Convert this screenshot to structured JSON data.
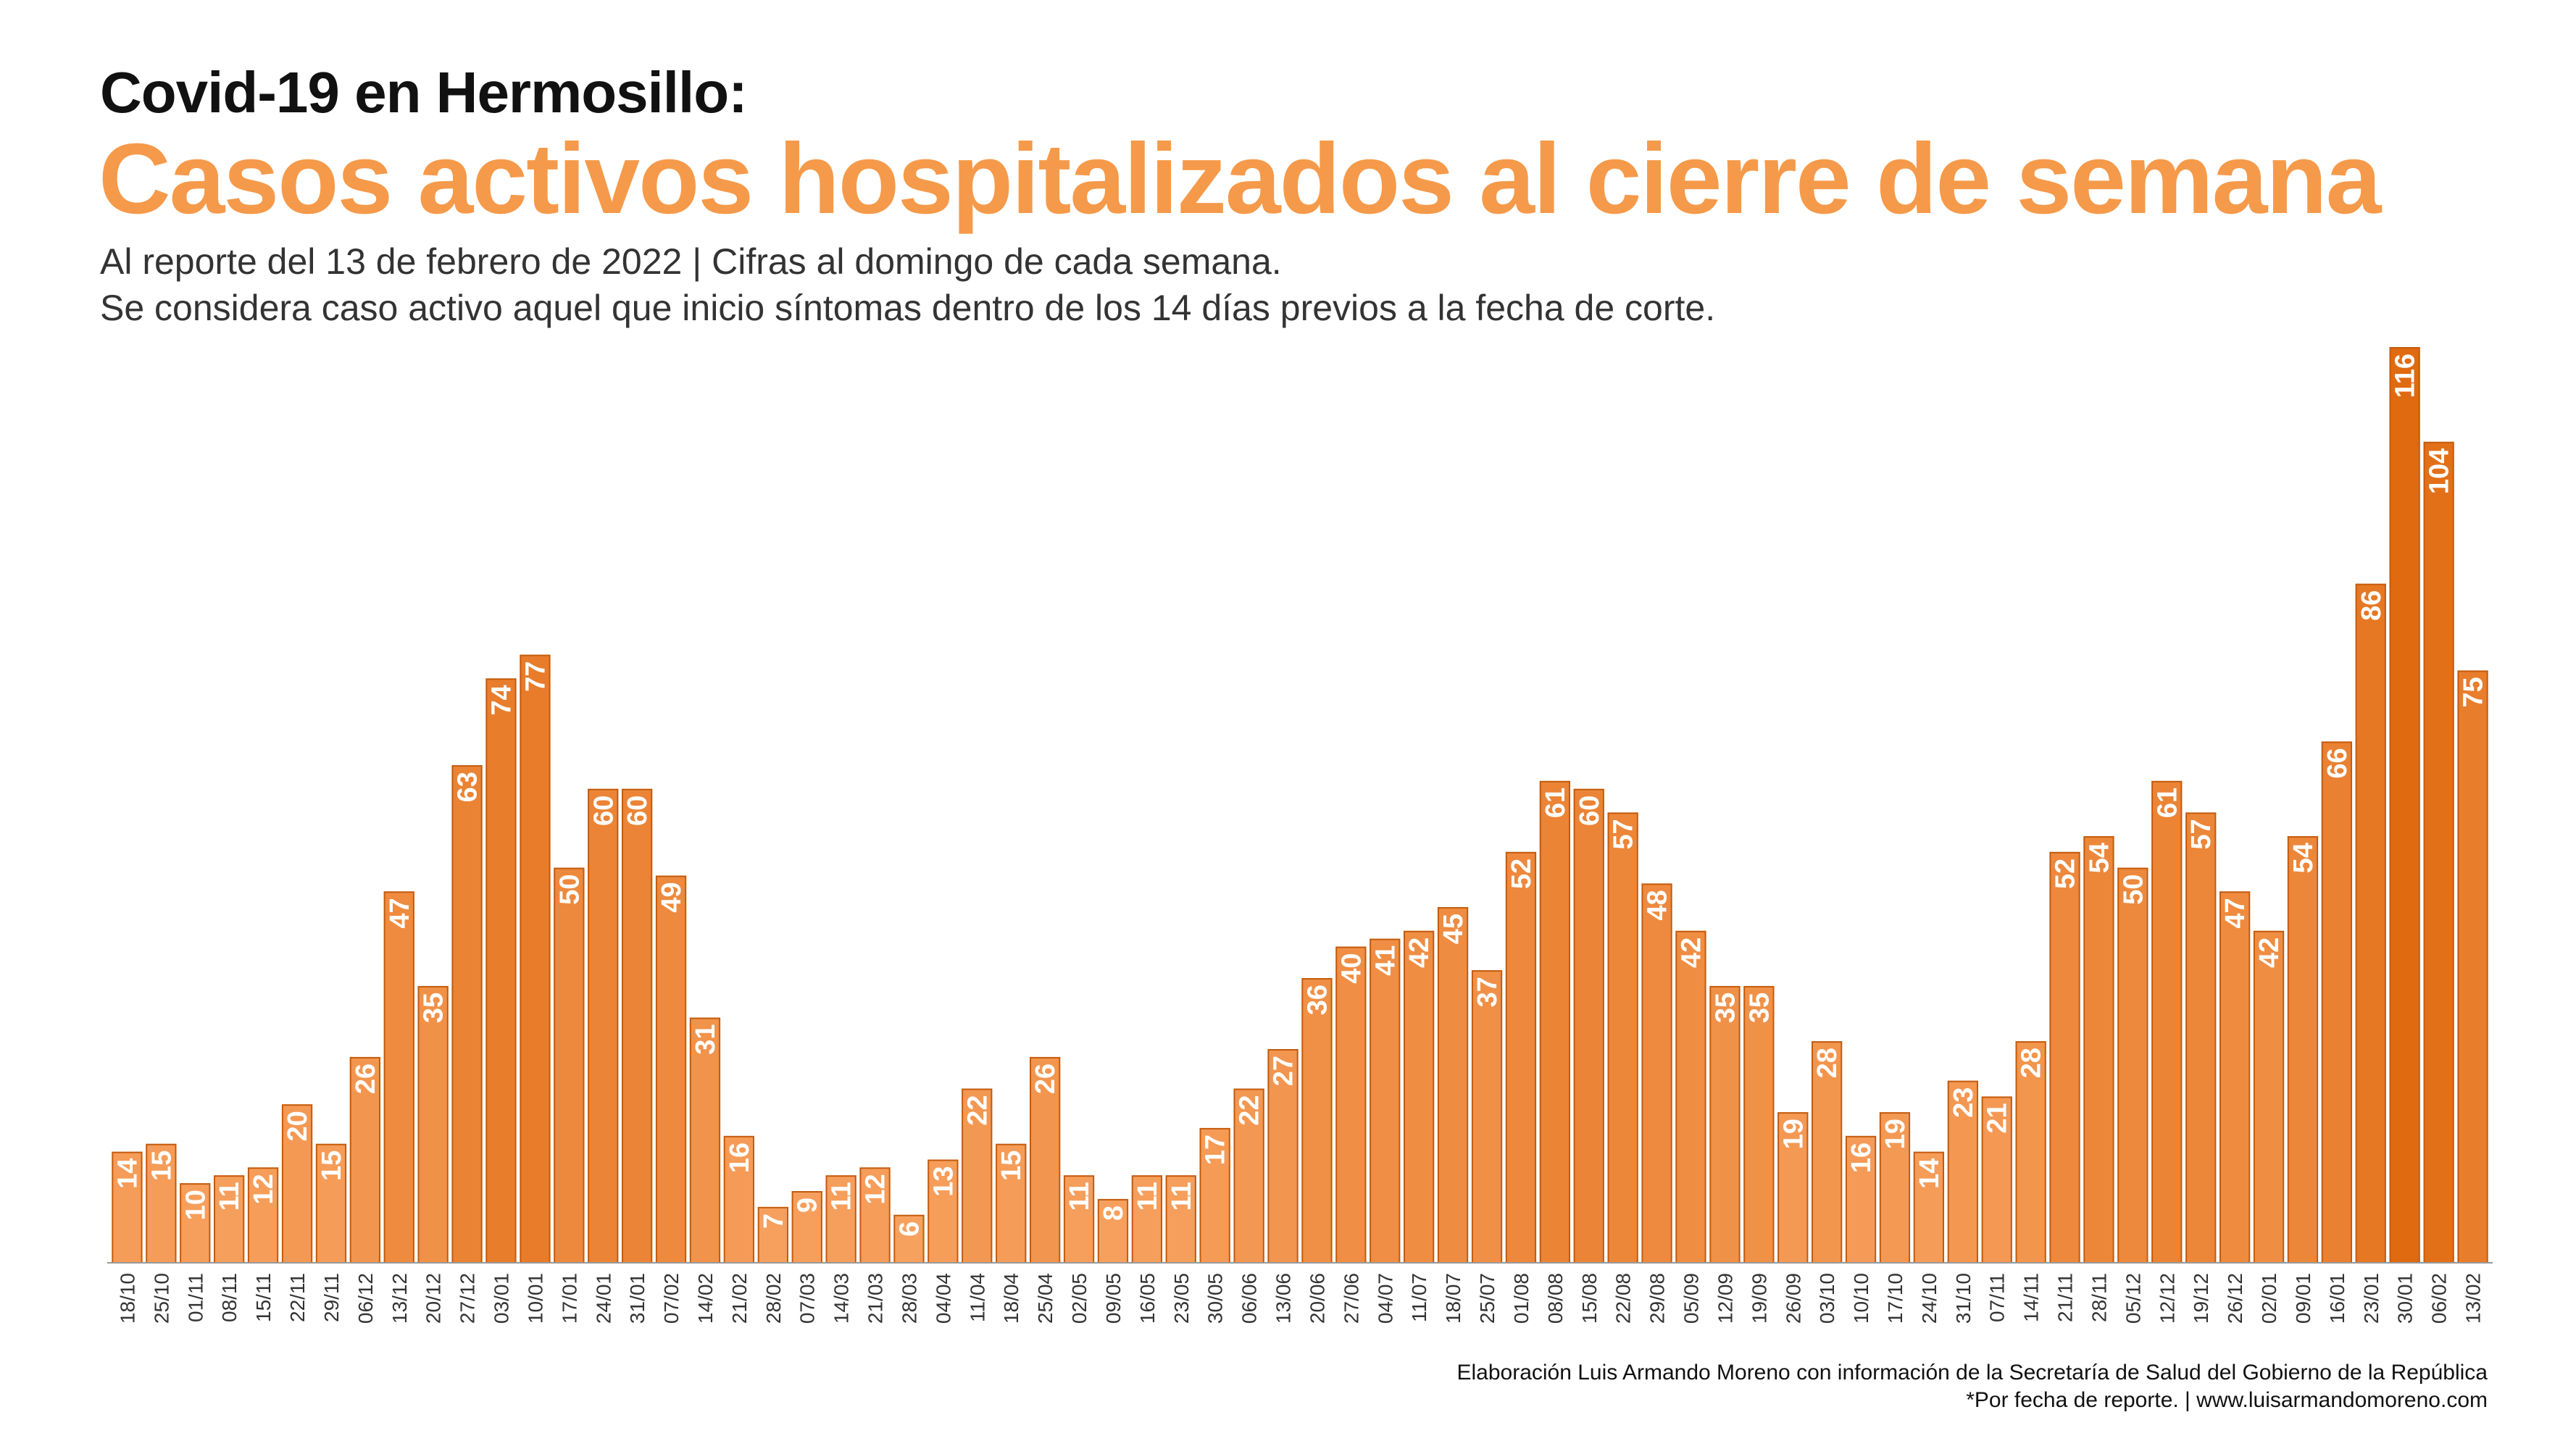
{
  "header": {
    "title": "Covid-19 en Hermosillo:",
    "headline": "Casos activos hospitalizados al cierre de semana",
    "subtitle_line1": "Al reporte del 13 de febrero de 2022  | Cifras al domingo de cada semana.",
    "subtitle_line2": "Se considera caso activo aquel que inicio síntomas dentro de los 14 días previos a la fecha de corte."
  },
  "footer": {
    "credit": "Elaboración Luis Armando Moreno con información de la Secretaría de Salud del Gobierno de la República",
    "note": "*Por fecha de reporte. | www.luisarmandomoreno.com"
  },
  "colors": {
    "bar_light": "#f9a565",
    "bar_dark": "#e06a10",
    "bar_stroke": "#c45a0c",
    "headline": "#f59a4a"
  },
  "chart_data": {
    "type": "bar",
    "grid": false,
    "legend": "none",
    "data_labels": true,
    "categories": [
      "18/10",
      "25/10",
      "01/11",
      "08/11",
      "15/11",
      "22/11",
      "29/11",
      "06/12",
      "13/12",
      "20/12",
      "27/12",
      "03/01",
      "10/01",
      "17/01",
      "24/01",
      "31/01",
      "07/02",
      "14/02",
      "21/02",
      "28/02",
      "07/03",
      "14/03",
      "21/03",
      "28/03",
      "04/04",
      "11/04",
      "18/04",
      "25/04",
      "02/05",
      "09/05",
      "16/05",
      "23/05",
      "30/05",
      "06/06",
      "13/06",
      "20/06",
      "27/06",
      "04/07",
      "11/07",
      "18/07",
      "25/07",
      "01/08",
      "08/08",
      "15/08",
      "22/08",
      "29/08",
      "05/09",
      "12/09",
      "19/09",
      "26/09",
      "03/10",
      "10/10",
      "17/10",
      "24/10",
      "31/10",
      "07/11",
      "14/11",
      "21/11",
      "28/11",
      "05/12",
      "12/12",
      "19/12",
      "26/12",
      "02/01",
      "09/01",
      "16/01",
      "23/01",
      "30/01",
      "06/02",
      "13/02"
    ],
    "values": [
      14,
      15,
      10,
      11,
      12,
      20,
      15,
      26,
      47,
      35,
      63,
      74,
      77,
      50,
      60,
      60,
      49,
      31,
      16,
      7,
      9,
      11,
      12,
      6,
      13,
      22,
      15,
      26,
      11,
      8,
      11,
      11,
      17,
      22,
      27,
      36,
      40,
      41,
      42,
      45,
      37,
      52,
      61,
      60,
      57,
      48,
      42,
      35,
      35,
      19,
      28,
      16,
      19,
      14,
      23,
      21,
      28,
      52,
      54,
      50,
      61,
      57,
      47,
      42,
      54,
      66,
      86,
      116,
      104,
      75
    ],
    "ylim": [
      0,
      116
    ]
  }
}
